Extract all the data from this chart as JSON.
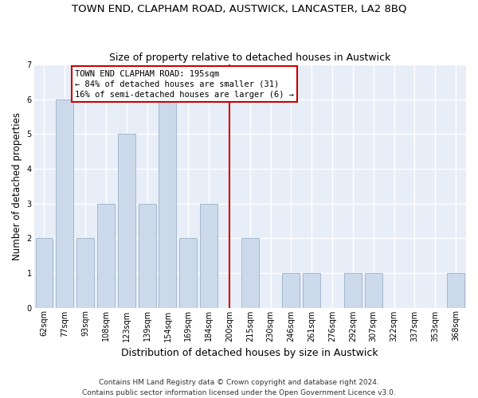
{
  "title": "TOWN END, CLAPHAM ROAD, AUSTWICK, LANCASTER, LA2 8BQ",
  "subtitle": "Size of property relative to detached houses in Austwick",
  "xlabel": "Distribution of detached houses by size in Austwick",
  "ylabel": "Number of detached properties",
  "categories": [
    "62sqm",
    "77sqm",
    "93sqm",
    "108sqm",
    "123sqm",
    "139sqm",
    "154sqm",
    "169sqm",
    "184sqm",
    "200sqm",
    "215sqm",
    "230sqm",
    "246sqm",
    "261sqm",
    "276sqm",
    "292sqm",
    "307sqm",
    "322sqm",
    "337sqm",
    "353sqm",
    "368sqm"
  ],
  "values": [
    2,
    6,
    2,
    3,
    5,
    3,
    6,
    2,
    3,
    0,
    2,
    0,
    1,
    1,
    0,
    1,
    1,
    0,
    0,
    0,
    1
  ],
  "bar_color": "#ccd9ea",
  "bar_edge_color": "#9ab0c8",
  "vline_x": 9.0,
  "vline_color": "#cc0000",
  "annotation_text": "TOWN END CLAPHAM ROAD: 195sqm\n← 84% of detached houses are smaller (31)\n16% of semi-detached houses are larger (6) →",
  "ylim": [
    0,
    7
  ],
  "yticks": [
    0,
    1,
    2,
    3,
    4,
    5,
    6,
    7
  ],
  "bg_color": "#e8eef8",
  "grid_color": "#ffffff",
  "footer_line1": "Contains HM Land Registry data © Crown copyright and database right 2024.",
  "footer_line2": "Contains public sector information licensed under the Open Government Licence v3.0.",
  "title_fontsize": 9.5,
  "subtitle_fontsize": 9,
  "xlabel_fontsize": 9,
  "ylabel_fontsize": 8.5,
  "tick_fontsize": 7,
  "annotation_fontsize": 7.5,
  "footer_fontsize": 6.5
}
